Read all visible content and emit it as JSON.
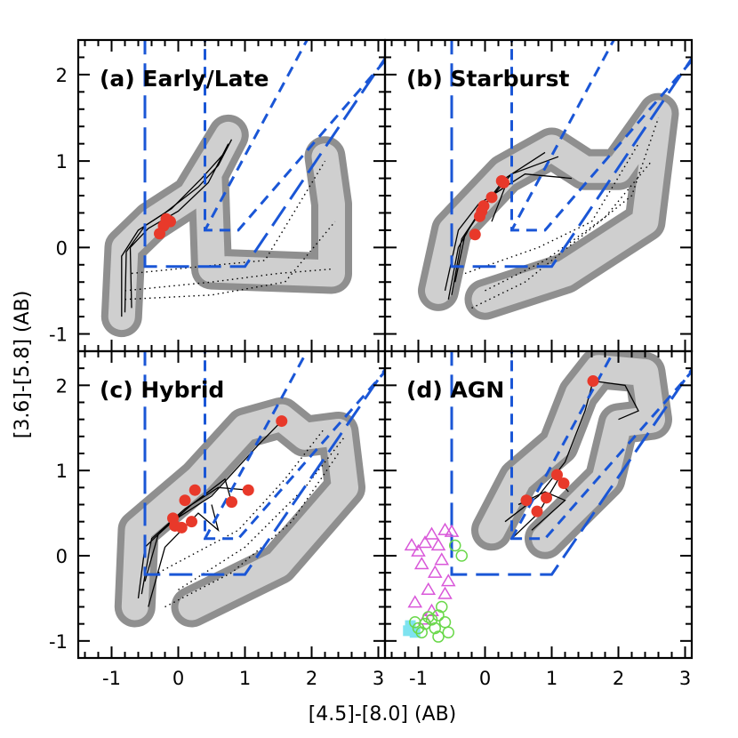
{
  "chart_data": [
    {
      "panel": "a",
      "title": "(a) Early/Late",
      "type": "scatter",
      "xlabel": "[4.5]-[8.0] (AB)",
      "ylabel": "[3.6]-[5.8] (AB)",
      "xlim": [
        -1.5,
        3.1
      ],
      "ylim": [
        -1.2,
        2.4
      ],
      "markers": [
        {
          "x": -0.18,
          "y": 0.33
        },
        {
          "x": -0.12,
          "y": 0.3
        },
        {
          "x": -0.22,
          "y": 0.25
        },
        {
          "x": -0.28,
          "y": 0.16
        }
      ],
      "tracks": [
        [
          [
            -0.85,
            -0.8
          ],
          [
            -0.85,
            -0.1
          ],
          [
            -0.6,
            0.2
          ],
          [
            -0.2,
            0.4
          ],
          [
            0.3,
            0.7
          ],
          [
            0.6,
            0.95
          ],
          [
            0.8,
            1.25
          ]
        ],
        [
          [
            -0.8,
            -0.75
          ],
          [
            -0.78,
            -0.05
          ],
          [
            -0.5,
            0.25
          ],
          [
            -0.1,
            0.45
          ],
          [
            0.35,
            0.8
          ],
          [
            0.7,
            1.1
          ]
        ],
        [
          [
            -0.7,
            -0.7
          ],
          [
            -0.72,
            0.0
          ],
          [
            -0.45,
            0.22
          ],
          [
            0.0,
            0.42
          ],
          [
            0.45,
            0.75
          ],
          [
            0.75,
            1.2
          ]
        ]
      ],
      "dotted_tracks": [
        [
          [
            -0.8,
            -0.5
          ],
          [
            0.5,
            -0.4
          ],
          [
            1.5,
            -0.3
          ],
          [
            2.3,
            -0.25
          ]
        ],
        [
          [
            -0.8,
            -0.6
          ],
          [
            0.5,
            -0.55
          ],
          [
            1.6,
            -0.4
          ],
          [
            2.35,
            0.3
          ]
        ],
        [
          [
            -0.7,
            -0.3
          ],
          [
            0.6,
            -0.2
          ],
          [
            1.3,
            -0.15
          ],
          [
            2.2,
            1.0
          ]
        ]
      ],
      "envelope": [
        [
          -0.85,
          -0.8
        ],
        [
          -0.8,
          0.0
        ],
        [
          -0.4,
          0.3
        ],
        [
          0.2,
          0.6
        ],
        [
          0.75,
          1.3
        ],
        [
          0.45,
          0.85
        ],
        [
          0.5,
          -0.25
        ],
        [
          2.3,
          -0.3
        ],
        [
          2.3,
          0.5
        ],
        [
          2.2,
          1.05
        ]
      ]
    },
    {
      "panel": "b",
      "title": "(b) Starburst",
      "type": "scatter",
      "xlim": [
        -1.5,
        3.1
      ],
      "ylim": [
        -1.2,
        2.4
      ],
      "markers": [
        {
          "x": 0.25,
          "y": 0.77
        },
        {
          "x": 0.28,
          "y": 0.75
        },
        {
          "x": 0.1,
          "y": 0.58
        },
        {
          "x": -0.02,
          "y": 0.48
        },
        {
          "x": -0.05,
          "y": 0.42
        },
        {
          "x": -0.08,
          "y": 0.36
        },
        {
          "x": -0.15,
          "y": 0.15
        }
      ],
      "tracks": [
        [
          [
            -0.55,
            -0.6
          ],
          [
            -0.4,
            0.0
          ],
          [
            -0.1,
            0.4
          ],
          [
            0.3,
            0.8
          ],
          [
            0.9,
            1.1
          ]
        ],
        [
          [
            -0.5,
            -0.55
          ],
          [
            -0.35,
            0.1
          ],
          [
            0.0,
            0.5
          ],
          [
            0.4,
            0.85
          ],
          [
            1.1,
            1.05
          ]
        ],
        [
          [
            -0.45,
            -0.4
          ],
          [
            -0.3,
            0.15
          ],
          [
            0.1,
            0.6
          ],
          [
            0.6,
            0.85
          ],
          [
            1.3,
            0.8
          ]
        ],
        [
          [
            -0.6,
            -0.5
          ],
          [
            -0.4,
            0.2
          ],
          [
            -0.1,
            0.5
          ],
          [
            0.3,
            0.7
          ],
          [
            0.1,
            0.3
          ]
        ]
      ],
      "dotted_tracks": [
        [
          [
            -0.2,
            -0.7
          ],
          [
            0.6,
            -0.4
          ],
          [
            1.4,
            0.1
          ],
          [
            2.2,
            0.6
          ],
          [
            2.6,
            1.5
          ]
        ],
        [
          [
            0.0,
            -0.5
          ],
          [
            0.9,
            -0.15
          ],
          [
            1.8,
            0.35
          ],
          [
            2.5,
            1.0
          ]
        ],
        [
          [
            -0.3,
            -0.3
          ],
          [
            0.8,
            0.0
          ],
          [
            1.6,
            0.3
          ],
          [
            2.3,
            1.2
          ]
        ]
      ],
      "envelope": [
        [
          -0.7,
          -0.5
        ],
        [
          -0.5,
          0.2
        ],
        [
          0.3,
          0.85
        ],
        [
          1.0,
          1.15
        ],
        [
          1.5,
          0.9
        ],
        [
          2.0,
          0.9
        ],
        [
          2.6,
          1.55
        ],
        [
          2.4,
          0.3
        ],
        [
          1.2,
          -0.3
        ],
        [
          0.0,
          -0.6
        ]
      ]
    },
    {
      "panel": "c",
      "title": "(c) Hybrid",
      "type": "scatter",
      "xlim": [
        -1.5,
        3.1
      ],
      "ylim": [
        -1.2,
        2.4
      ],
      "markers": [
        {
          "x": 1.55,
          "y": 1.58
        },
        {
          "x": 1.05,
          "y": 0.77
        },
        {
          "x": 0.8,
          "y": 0.63
        },
        {
          "x": 0.25,
          "y": 0.77
        },
        {
          "x": 0.1,
          "y": 0.65
        },
        {
          "x": -0.08,
          "y": 0.44
        },
        {
          "x": -0.05,
          "y": 0.35
        },
        {
          "x": 0.05,
          "y": 0.33
        },
        {
          "x": 0.2,
          "y": 0.4
        }
      ],
      "tracks": [
        [
          [
            -0.6,
            -0.5
          ],
          [
            -0.5,
            0.1
          ],
          [
            -0.1,
            0.4
          ],
          [
            0.5,
            0.7
          ],
          [
            1.2,
            1.3
          ],
          [
            1.55,
            1.58
          ]
        ],
        [
          [
            -0.55,
            -0.45
          ],
          [
            -0.4,
            0.2
          ],
          [
            0.1,
            0.55
          ],
          [
            0.6,
            0.8
          ],
          [
            1.05,
            0.77
          ]
        ],
        [
          [
            -0.5,
            -0.3
          ],
          [
            -0.3,
            0.25
          ],
          [
            0.2,
            0.6
          ],
          [
            0.7,
            0.9
          ],
          [
            0.8,
            0.63
          ]
        ],
        [
          [
            -0.45,
            -0.6
          ],
          [
            -0.2,
            0.1
          ],
          [
            0.3,
            0.5
          ],
          [
            0.6,
            0.3
          ],
          [
            0.5,
            0.6
          ]
        ]
      ],
      "dotted_tracks": [
        [
          [
            -0.2,
            -0.6
          ],
          [
            0.8,
            -0.2
          ],
          [
            1.7,
            0.4
          ],
          [
            2.4,
            1.2
          ]
        ],
        [
          [
            0.0,
            -0.4
          ],
          [
            1.0,
            0.1
          ],
          [
            1.9,
            0.8
          ],
          [
            2.5,
            1.4
          ]
        ],
        [
          [
            -0.3,
            -0.2
          ],
          [
            0.9,
            0.3
          ],
          [
            1.6,
            0.9
          ],
          [
            2.2,
            1.5
          ]
        ]
      ],
      "envelope": [
        [
          -0.65,
          -0.6
        ],
        [
          -0.6,
          0.3
        ],
        [
          0.3,
          0.9
        ],
        [
          1.0,
          1.5
        ],
        [
          1.55,
          1.62
        ],
        [
          1.9,
          1.4
        ],
        [
          2.4,
          1.45
        ],
        [
          2.5,
          0.8
        ],
        [
          1.5,
          -0.1
        ],
        [
          0.2,
          -0.6
        ]
      ]
    },
    {
      "panel": "d",
      "title": "(d) AGN",
      "type": "scatter",
      "xlim": [
        -1.5,
        3.1
      ],
      "ylim": [
        -1.2,
        2.4
      ],
      "markers": [
        {
          "x": 1.62,
          "y": 2.05
        },
        {
          "x": 1.08,
          "y": 0.95
        },
        {
          "x": 1.18,
          "y": 0.85
        },
        {
          "x": 0.92,
          "y": 0.68
        },
        {
          "x": 0.78,
          "y": 0.52
        },
        {
          "x": 0.62,
          "y": 0.65
        }
      ],
      "tracks": [
        [
          [
            0.3,
            0.4
          ],
          [
            0.8,
            0.7
          ],
          [
            1.2,
            1.1
          ],
          [
            1.5,
            1.7
          ],
          [
            1.62,
            2.05
          ],
          [
            2.1,
            2.0
          ],
          [
            2.3,
            1.7
          ],
          [
            2.0,
            1.6
          ]
        ],
        [
          [
            0.4,
            0.2
          ],
          [
            0.8,
            0.5
          ],
          [
            1.1,
            0.9
          ],
          [
            1.25,
            0.75
          ]
        ],
        [
          [
            0.5,
            0.6
          ],
          [
            0.9,
            0.75
          ],
          [
            1.2,
            0.65
          ],
          [
            0.7,
            0.3
          ]
        ]
      ],
      "envelope": [
        [
          0.1,
          0.3
        ],
        [
          0.5,
          0.9
        ],
        [
          1.1,
          1.3
        ],
        [
          1.4,
          1.9
        ],
        [
          1.7,
          2.2
        ],
        [
          2.4,
          2.15
        ],
        [
          2.5,
          1.6
        ],
        [
          2.0,
          1.55
        ],
        [
          1.8,
          0.9
        ],
        [
          0.9,
          0.2
        ]
      ],
      "open_triangles": [
        {
          "x": -1.0,
          "y": 0.05
        },
        {
          "x": -0.9,
          "y": 0.15
        },
        {
          "x": -0.8,
          "y": 0.25
        },
        {
          "x": -0.6,
          "y": 0.3
        },
        {
          "x": -0.7,
          "y": 0.12
        },
        {
          "x": -0.95,
          "y": -0.1
        },
        {
          "x": -0.75,
          "y": -0.2
        },
        {
          "x": -0.55,
          "y": -0.3
        },
        {
          "x": -0.6,
          "y": -0.45
        },
        {
          "x": -0.85,
          "y": -0.4
        },
        {
          "x": -1.05,
          "y": -0.55
        },
        {
          "x": -0.9,
          "y": -0.75
        },
        {
          "x": -1.1,
          "y": 0.12
        },
        {
          "x": -0.65,
          "y": -0.05
        },
        {
          "x": -0.5,
          "y": 0.28
        },
        {
          "x": -0.8,
          "y": -0.65
        }
      ],
      "open_circles": [
        {
          "x": -1.0,
          "y": -0.85
        },
        {
          "x": -0.9,
          "y": -0.8
        },
        {
          "x": -0.8,
          "y": -0.75
        },
        {
          "x": -0.7,
          "y": -0.7
        },
        {
          "x": -0.75,
          "y": -0.85
        },
        {
          "x": -0.95,
          "y": -0.9
        },
        {
          "x": -0.6,
          "y": -0.78
        },
        {
          "x": -0.85,
          "y": -0.72
        },
        {
          "x": -1.05,
          "y": -0.78
        },
        {
          "x": -0.65,
          "y": -0.6
        },
        {
          "x": -0.55,
          "y": -0.9
        },
        {
          "x": -0.35,
          "y": 0.0
        },
        {
          "x": -0.45,
          "y": 0.12
        },
        {
          "x": -0.7,
          "y": -0.95
        }
      ],
      "cyan_squares": [
        {
          "x": -1.15,
          "y": -0.88
        },
        {
          "x": -1.12,
          "y": -0.82
        },
        {
          "x": -1.05,
          "y": -0.9
        }
      ]
    }
  ],
  "colors": {
    "wedge": "#1a56d6",
    "marker_red": "#e8392a",
    "triangle_magenta": "#d957d9",
    "circle_green": "#6ad84a",
    "square_cyan": "#7fe3f0",
    "envelope_dark": "#8f8f8f",
    "envelope_light": "#cfcfcf"
  },
  "axes": {
    "xlabel": "[4.5]-[8.0] (AB)",
    "ylabel": "[3.6]-[5.8] (AB)",
    "x_ticks": [
      -1,
      0,
      1,
      2,
      3
    ],
    "y_ticks": [
      -1,
      0,
      1,
      2
    ]
  }
}
